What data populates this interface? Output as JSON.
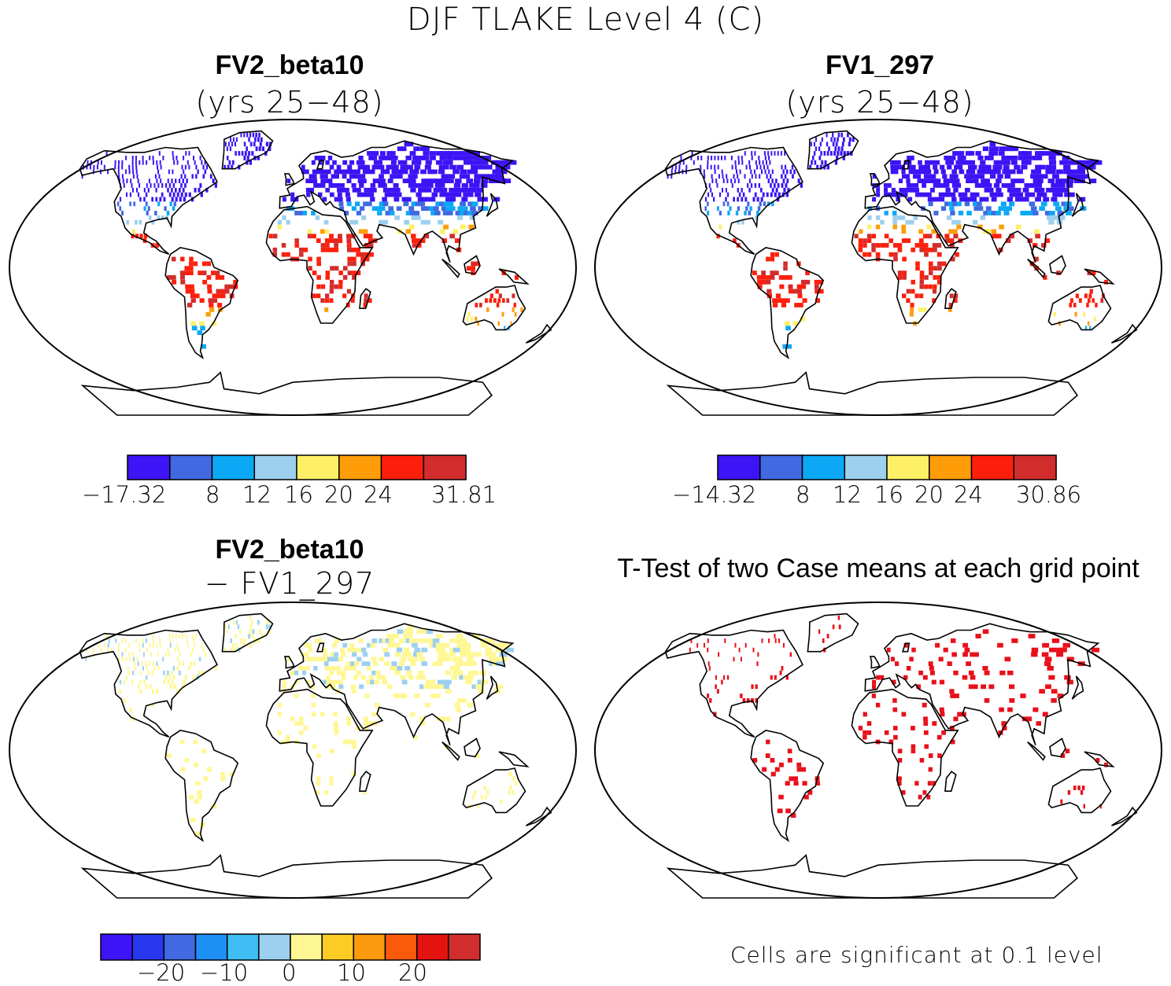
{
  "figure_title": "DJF TLAKE Level 4 (C)",
  "colors": {
    "scale8": [
      "#3c14f5",
      "#4169e1",
      "#0ca8f5",
      "#9dd0ee",
      "#fdf066",
      "#fe9d08",
      "#fd1f0c",
      "#d22d2d"
    ],
    "scale12": [
      "#3c14f5",
      "#2838ee",
      "#4169e1",
      "#1e8ff5",
      "#3fbdf5",
      "#9dd0ee",
      "#fff794",
      "#fccc24",
      "#fb9a0c",
      "#fa5a0a",
      "#e3140f",
      "#d22d2d"
    ],
    "significant": "#e8101a",
    "coast": "#000000"
  },
  "panels": {
    "tl": {
      "title": "FV2_beta10",
      "subtitle": "(yrs 25−48)",
      "colorbar": {
        "labels": [
          "−17.32",
          "8",
          "12",
          "16",
          "20",
          "24",
          "31.81"
        ]
      }
    },
    "tr": {
      "title": "FV1_297",
      "subtitle": "(yrs 25−48)",
      "colorbar": {
        "labels": [
          "−14.32",
          "8",
          "12",
          "16",
          "20",
          "24",
          "30.86"
        ]
      }
    },
    "bl": {
      "title": "FV2_beta10",
      "subtitle": "− FV1_297",
      "colorbar": {
        "labels": [
          "−20",
          "−10",
          "0",
          "10",
          "20"
        ]
      }
    },
    "br": {
      "title": "T-Test of two Case means at each grid point",
      "note": "Cells are significant at 0.1 level"
    }
  }
}
